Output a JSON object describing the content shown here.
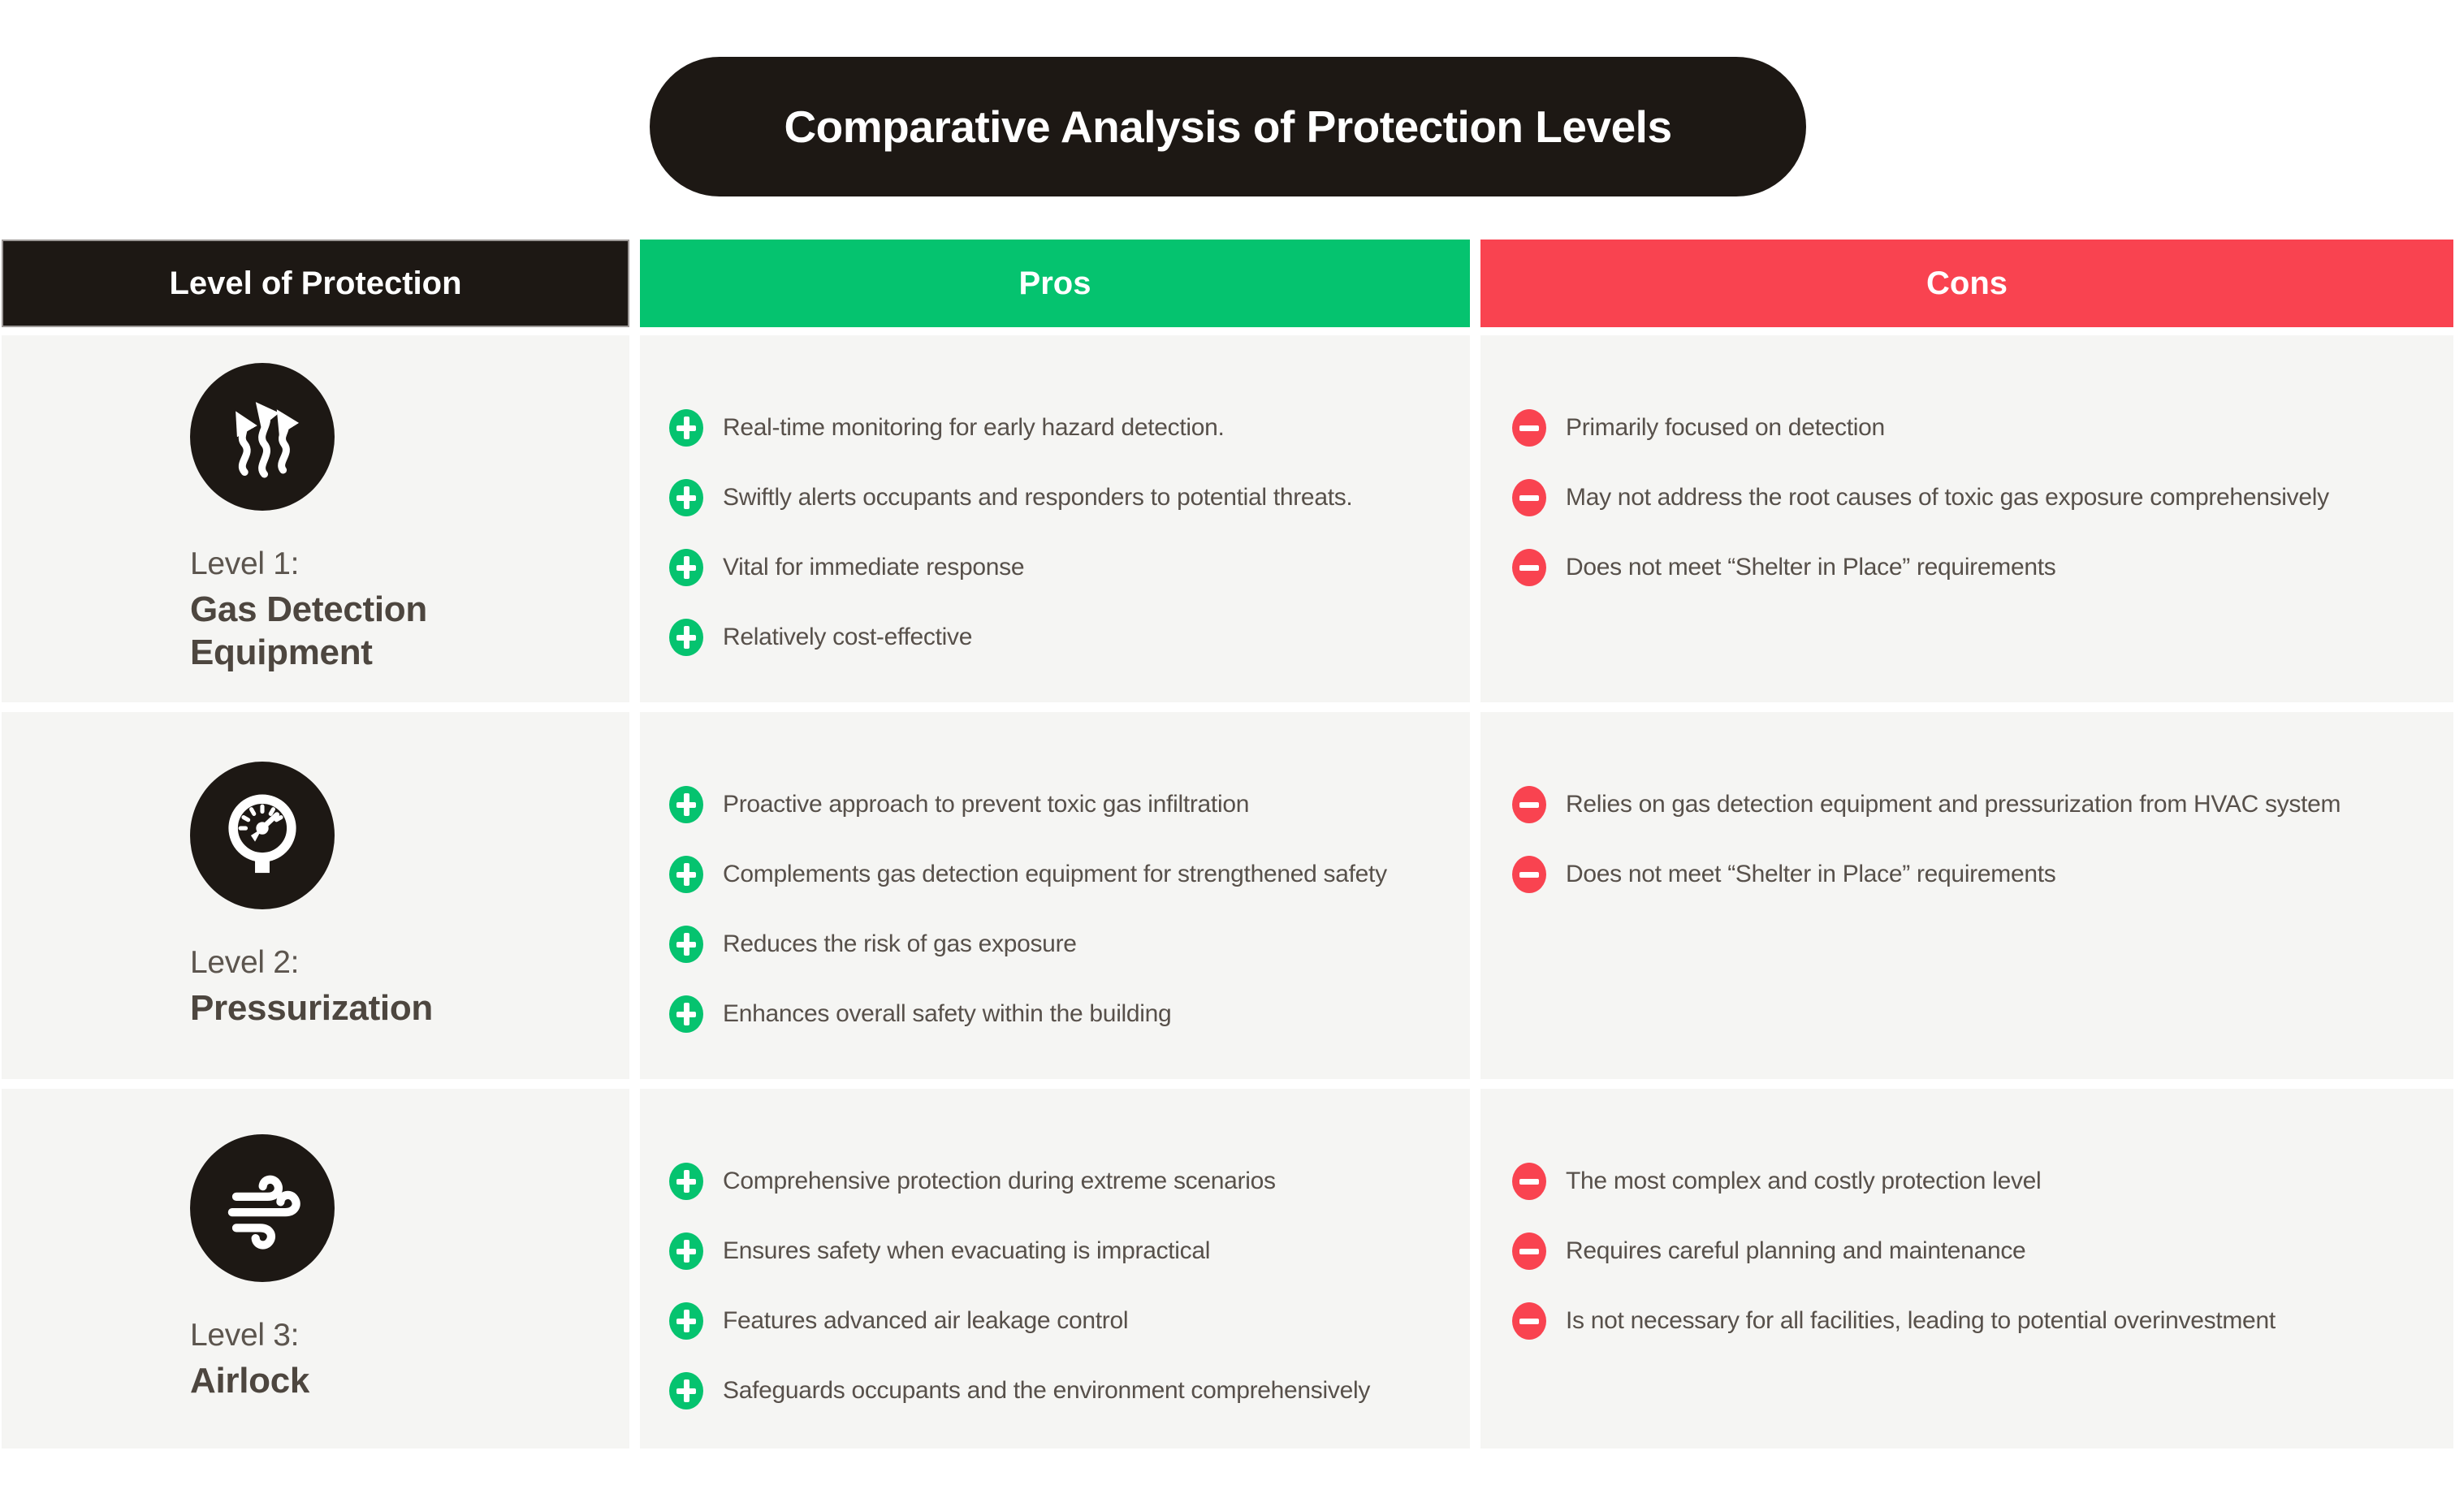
{
  "title": "Comparative Analysis of Protection Levels",
  "columns": {
    "level": "Level of Protection",
    "pros": "Pros",
    "cons": "Cons"
  },
  "colors": {
    "black": "#1d1814",
    "green": "#05c36f",
    "red": "#f94350",
    "row_background": "#f5f5f3",
    "body_text": "#57504a"
  },
  "rows": [
    {
      "icon": "gas-detection-icon",
      "level_prefix": "Level 1:",
      "level_name": "Gas Detection Equipment",
      "pros": [
        "Real-time monitoring for early hazard detection.",
        "Swiftly alerts occupants and responders to potential threats.",
        "Vital for immediate response",
        "Relatively cost-effective"
      ],
      "cons": [
        "Primarily focused on detection",
        "May not address the root causes of toxic gas exposure comprehensively",
        "Does not meet “Shelter in Place” requirements"
      ]
    },
    {
      "icon": "pressure-gauge-icon",
      "level_prefix": "Level 2:",
      "level_name": "Pressurization",
      "pros": [
        "Proactive approach to prevent toxic gas infiltration",
        "Complements gas detection equipment for strengthened safety",
        "Reduces the risk of gas exposure",
        "Enhances overall safety within the building"
      ],
      "cons": [
        "Relies on gas detection equipment and pressurization from HVAC system",
        "Does not meet “Shelter in Place” requirements"
      ]
    },
    {
      "icon": "wind-airlock-icon",
      "level_prefix": "Level 3:",
      "level_name": "Airlock",
      "pros": [
        "Comprehensive protection during extreme scenarios",
        "Ensures safety when evacuating is impractical",
        "Features advanced air leakage control",
        "Safeguards occupants and the environment comprehensively"
      ],
      "cons": [
        "The most complex and costly protection level",
        "Requires careful planning and maintenance",
        "Is not necessary for all facilities, leading to potential overinvestment"
      ]
    }
  ]
}
